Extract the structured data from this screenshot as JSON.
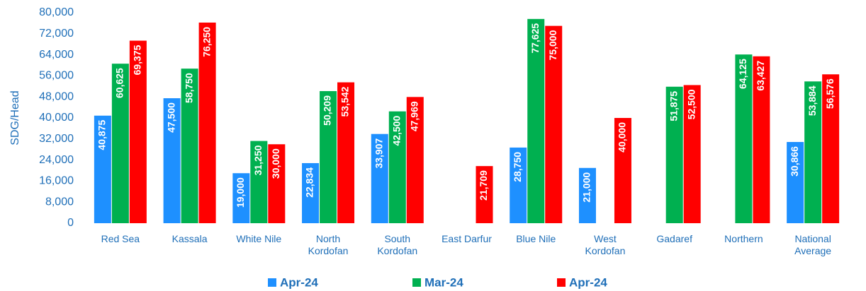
{
  "chart_data": {
    "type": "bar",
    "y_label": "SDG/Head",
    "categories": [
      "Red Sea",
      "Kassala",
      "White Nile",
      "North Kordofan",
      "South Kordofan",
      "East Darfur",
      "Blue Nile",
      "West Kordofan",
      "Gadaref",
      "Northern",
      "National Average"
    ],
    "series": [
      {
        "name": "Apr-24",
        "color": "#1e90ff",
        "values": [
          40875,
          47500,
          19000,
          22834,
          33907,
          null,
          28750,
          21000,
          null,
          null,
          30866
        ],
        "value_labels": [
          "40,875",
          "47,500",
          "19,000",
          "22,834",
          "33,907",
          null,
          "28,750",
          "21,000",
          null,
          null,
          "30,866"
        ]
      },
      {
        "name": "Mar-24",
        "color": "#00b050",
        "values": [
          60625,
          58750,
          31250,
          50209,
          42500,
          null,
          77625,
          null,
          51875,
          64125,
          53884
        ],
        "value_labels": [
          "60,625",
          "58,750",
          "31,250",
          "50,209",
          "42,500",
          null,
          "77,625",
          null,
          "51,875",
          "64,125",
          "53,884"
        ]
      },
      {
        "name": "Apr-24",
        "color": "#ff0000",
        "values": [
          69375,
          76250,
          30000,
          53542,
          47969,
          21709,
          75000,
          40000,
          52500,
          63427,
          56576
        ],
        "value_labels": [
          "69,375",
          "76,250",
          "30,000",
          "53,542",
          "47,969",
          "21,709",
          "75,000",
          "40,000",
          "52,500",
          "63,427",
          "56,576"
        ]
      }
    ],
    "ylim": [
      0,
      80000
    ],
    "yticks": [
      0,
      {
        "value": 8000,
        "label": "8,000"
      },
      {
        "value": 16000,
        "label": "16,000"
      },
      {
        "value": 24000,
        "label": "24,000"
      },
      {
        "value": 32000,
        "label": "32,000"
      },
      {
        "value": 40000,
        "label": "40,000"
      },
      {
        "value": 48000,
        "label": "48,000"
      },
      {
        "value": 56000,
        "label": "56,000"
      },
      {
        "value": 64000,
        "label": "64,000"
      },
      {
        "value": 72000,
        "label": "72,000"
      },
      {
        "value": 80000,
        "label": "80,000"
      }
    ],
    "legend": "bottom"
  }
}
